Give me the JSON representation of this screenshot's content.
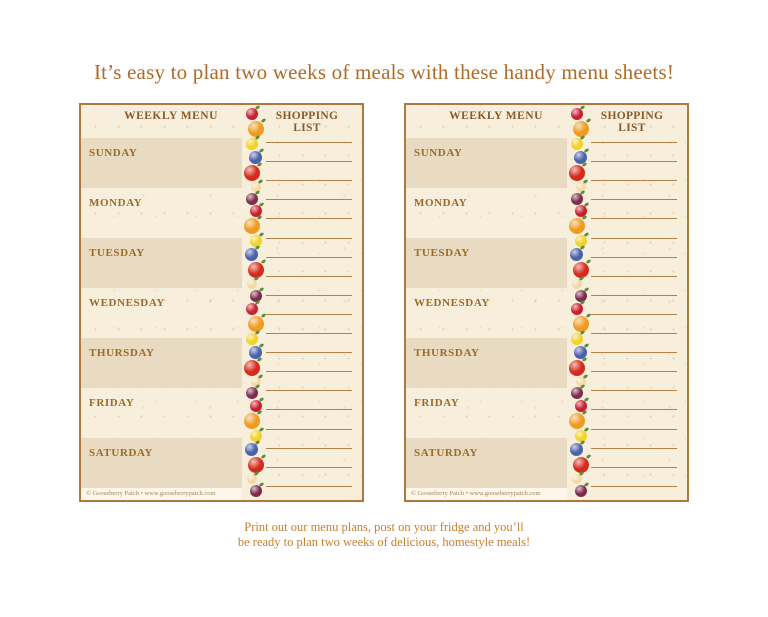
{
  "page": {
    "title": "It’s easy to plan two weeks of meals with these handy menu sheets!",
    "caption_line1": "Print out our menu plans, post on your fridge and you’ll",
    "caption_line2": "be ready to plan two weeks of delicious, homestyle meals!"
  },
  "colors": {
    "title_text": "#b06a28",
    "caption_text": "#c6812f",
    "sheet_bg": "#f7efdc",
    "sheet_border": "#ac7a41",
    "band_dark": "#e8dbc1",
    "header_text": "#8a5a28",
    "day_text": "#9c6a2b",
    "line_color": "#b3814b",
    "copyright_bg": "#fcf7ea",
    "copyright_text": "#a3875a"
  },
  "sheet": {
    "weekly_menu_label": "WEEKLY MENU",
    "shopping_list_label": "SHOPPING LIST",
    "days": [
      "SUNDAY",
      "MONDAY",
      "TUESDAY",
      "WEDNESDAY",
      "THURSDAY",
      "FRIDAY",
      "SATURDAY"
    ],
    "shopping_line_count": 20,
    "copyright": "© Gooseberry Patch • www.gooseberrypatch.com",
    "fruit_border": {
      "repeat": 4,
      "sequence": [
        {
          "name": "cherries",
          "color": "#c9202f",
          "size": 12
        },
        {
          "name": "orange",
          "color": "#ef9b22",
          "size": 16
        },
        {
          "name": "lemon",
          "color": "#f2d329",
          "size": 12
        },
        {
          "name": "blueberries",
          "color": "#4a62aa",
          "size": 13
        },
        {
          "name": "apple",
          "color": "#d52a1c",
          "size": 16
        },
        {
          "name": "apple-slice",
          "color": "#f4d9a4",
          "size": 10
        },
        {
          "name": "blackberry",
          "color": "#7d2c4c",
          "size": 12
        }
      ]
    }
  }
}
